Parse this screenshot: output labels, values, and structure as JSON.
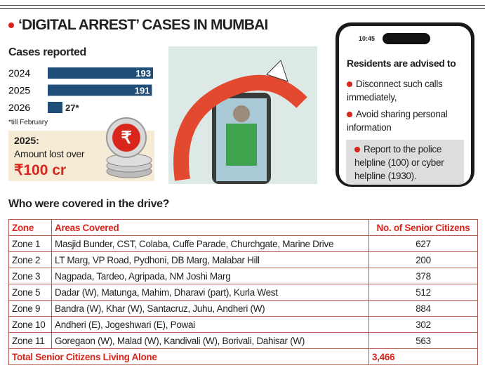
{
  "header": {
    "title": "‘DIGITAL ARREST’ CASES IN MUMBAI"
  },
  "chart_data": {
    "type": "bar",
    "orientation": "horizontal",
    "title": "Cases reported",
    "categories": [
      "2024",
      "2025",
      "2026"
    ],
    "values": [
      193,
      191,
      27
    ],
    "value_labels": [
      "193",
      "191",
      "27*"
    ],
    "color": "#1f4e79",
    "footnote": "*till February"
  },
  "loss": {
    "label": "2025:",
    "text": "Amount lost over",
    "amount": "₹100 cr"
  },
  "phone": {
    "time": "10:45",
    "heading": "Residents are advised to",
    "items": [
      "Disconnect such calls immediately,",
      "Avoid sharing personal information",
      "Report to the police helpline (100) or cyber helpline (1930)."
    ]
  },
  "table": {
    "title": "Who were covered in the drive?",
    "columns": [
      "Zone",
      "Areas Covered",
      "No. of Senior Citizens"
    ],
    "rows": [
      [
        "Zone 1",
        "Masjid Bunder, CST, Colaba, Cuffe Parade, Churchgate, Marine Drive",
        "627"
      ],
      [
        "Zone 2",
        "LT Marg, VP Road, Pydhoni, DB Marg, Malabar Hill",
        "200"
      ],
      [
        "Zone 3",
        "Nagpada, Tardeo, Agripada, NM Joshi Marg",
        "378"
      ],
      [
        "Zone 5",
        "Dadar (W), Matunga, Mahim, Dharavi (part), Kurla West",
        "512"
      ],
      [
        "Zone 9",
        "Bandra (W), Khar (W), Santacruz, Juhu, Andheri (W)",
        "884"
      ],
      [
        "Zone 10",
        "Andheri (E), Jogeshwari (E), Powai",
        "302"
      ],
      [
        "Zone 11",
        "Goregaon (W), Malad (W), Kandivali (W), Borivali, Dahisar (W)",
        "563"
      ]
    ],
    "total": [
      "Total Senior Citizens Living Alone",
      "3,466"
    ]
  }
}
